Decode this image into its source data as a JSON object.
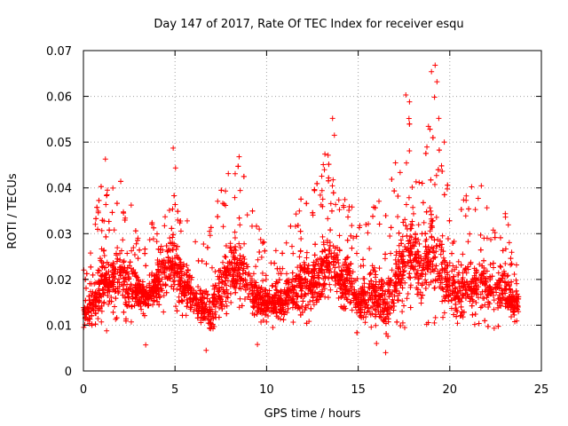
{
  "chart_data": {
    "type": "scatter",
    "title": "Day 147 of 2017, Rate Of TEC Index for receiver esqu",
    "xlabel": "GPS time / hours",
    "ylabel": "ROTI / TECUs",
    "xlim": [
      0,
      25
    ],
    "ylim": [
      0,
      0.07
    ],
    "x_ticks": [
      "0",
      "5",
      "10",
      "15",
      "20",
      "25"
    ],
    "x_tick_values": [
      0,
      5,
      10,
      15,
      20,
      25
    ],
    "y_ticks": [
      "0",
      "0.01",
      "0.02",
      "0.03",
      "0.04",
      "0.05",
      "0.06",
      "0.07"
    ],
    "y_tick_values": [
      0,
      0.01,
      0.02,
      0.03,
      0.04,
      0.05,
      0.06,
      0.07
    ],
    "grid": true,
    "marker": "plus",
    "color": "#ff0000",
    "x_range_data": [
      0,
      23.75
    ],
    "envelope": {
      "x": [
        0,
        0.5,
        1,
        1.5,
        2,
        2.5,
        3,
        3.5,
        4,
        4.5,
        5,
        5.5,
        6,
        6.5,
        7,
        7.5,
        8,
        8.5,
        9,
        9.5,
        10,
        10.5,
        11,
        11.5,
        12,
        12.5,
        13,
        13.5,
        14,
        14.5,
        15,
        15.5,
        16,
        16.5,
        17,
        17.5,
        18,
        18.5,
        19,
        19.5,
        20,
        20.5,
        21,
        21.5,
        22,
        22.5,
        23,
        23.5,
        23.75
      ],
      "low": [
        0.009,
        0.008,
        0.007,
        0.01,
        0.011,
        0.01,
        0.011,
        0.012,
        0.011,
        0.012,
        0.012,
        0.011,
        0.01,
        0.007,
        0.005,
        0.007,
        0.01,
        0.011,
        0.009,
        0.008,
        0.009,
        0.009,
        0.009,
        0.009,
        0.009,
        0.009,
        0.01,
        0.01,
        0.011,
        0.009,
        0.008,
        0.007,
        0.006,
        0.005,
        0.007,
        0.008,
        0.009,
        0.01,
        0.009,
        0.01,
        0.009,
        0.008,
        0.009,
        0.009,
        0.009,
        0.009,
        0.01,
        0.01,
        0.011
      ],
      "high": [
        0.022,
        0.03,
        0.046,
        0.04,
        0.043,
        0.038,
        0.03,
        0.027,
        0.038,
        0.046,
        0.048,
        0.036,
        0.029,
        0.028,
        0.032,
        0.04,
        0.045,
        0.047,
        0.042,
        0.032,
        0.027,
        0.03,
        0.03,
        0.036,
        0.044,
        0.04,
        0.046,
        0.055,
        0.038,
        0.04,
        0.032,
        0.034,
        0.039,
        0.035,
        0.046,
        0.06,
        0.058,
        0.045,
        0.067,
        0.05,
        0.038,
        0.037,
        0.04,
        0.042,
        0.04,
        0.034,
        0.037,
        0.025,
        0.024
      ]
    },
    "notable_points": [
      {
        "x": 19.2,
        "y": 0.0668
      },
      {
        "x": 19.0,
        "y": 0.0654
      },
      {
        "x": 19.3,
        "y": 0.0632
      },
      {
        "x": 17.6,
        "y": 0.0603
      },
      {
        "x": 17.8,
        "y": 0.0588
      },
      {
        "x": 13.6,
        "y": 0.0552
      },
      {
        "x": 19.4,
        "y": 0.0552
      },
      {
        "x": 13.7,
        "y": 0.0515
      },
      {
        "x": 19.7,
        "y": 0.05
      },
      {
        "x": 4.9,
        "y": 0.0487
      },
      {
        "x": 1.2,
        "y": 0.0463
      },
      {
        "x": 8.5,
        "y": 0.0468
      },
      {
        "x": 9.5,
        "y": 0.0058
      },
      {
        "x": 16.0,
        "y": 0.006
      },
      {
        "x": 6.7,
        "y": 0.0045
      },
      {
        "x": 16.5,
        "y": 0.004
      },
      {
        "x": 3.4,
        "y": 0.0057
      }
    ]
  }
}
